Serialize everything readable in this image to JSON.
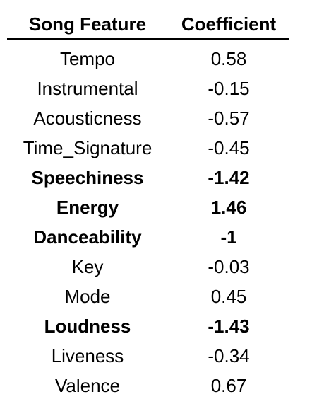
{
  "table": {
    "headers": {
      "feature": "Song Feature",
      "coefficient": "Coefficient"
    },
    "rows": [
      {
        "feature": "Tempo",
        "coefficient": "0.58",
        "bold": false
      },
      {
        "feature": "Instrumental",
        "coefficient": "-0.15",
        "bold": false
      },
      {
        "feature": "Acousticness",
        "coefficient": "-0.57",
        "bold": false
      },
      {
        "feature": "Time_Signature",
        "coefficient": "-0.45",
        "bold": false
      },
      {
        "feature": "Speechiness",
        "coefficient": "-1.42",
        "bold": true
      },
      {
        "feature": "Energy",
        "coefficient": "1.46",
        "bold": true
      },
      {
        "feature": "Danceability",
        "coefficient": "-1",
        "bold": true
      },
      {
        "feature": "Key",
        "coefficient": "-0.03",
        "bold": false
      },
      {
        "feature": "Mode",
        "coefficient": "0.45",
        "bold": false
      },
      {
        "feature": "Loudness",
        "coefficient": "-1.43",
        "bold": true
      },
      {
        "feature": "Liveness",
        "coefficient": "-0.34",
        "bold": false
      },
      {
        "feature": "Valence",
        "coefficient": "0.67",
        "bold": false
      }
    ]
  }
}
